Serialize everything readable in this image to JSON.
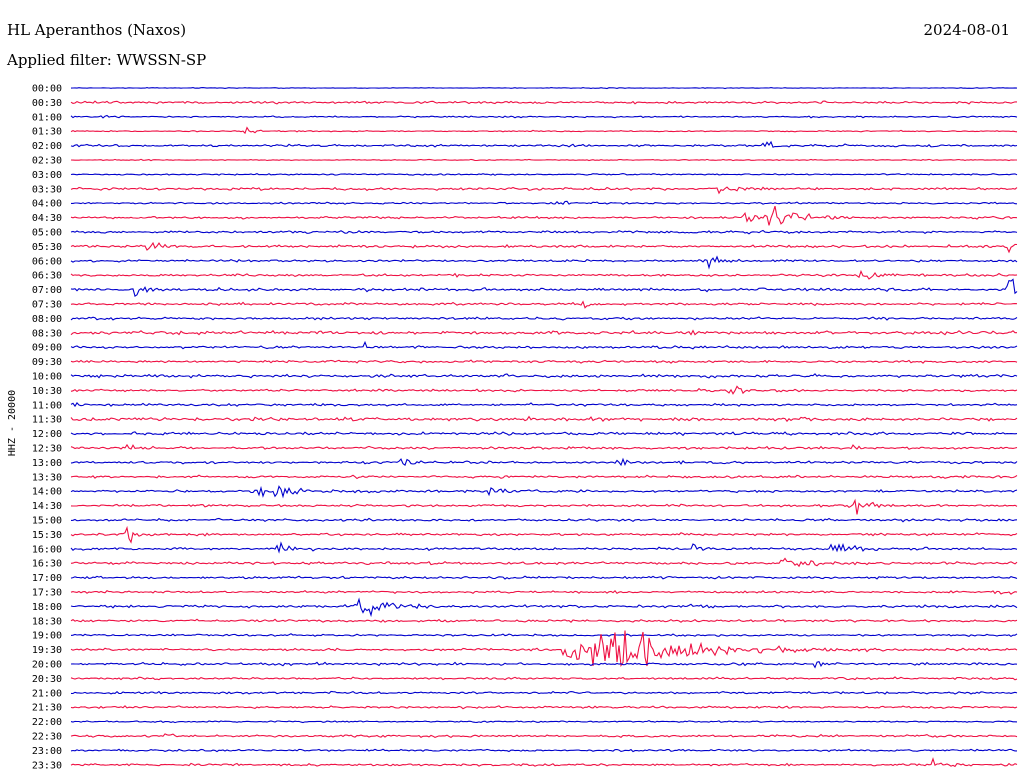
{
  "header": {
    "station": "HL Aperanthos (Naxos)",
    "date": "2024-08-01",
    "filter": "Applied filter: WWSSN-SP"
  },
  "chart_data": {
    "type": "line",
    "title": "HL Aperanthos (Naxos)",
    "ylabel": "HHZ - 20000",
    "xlabel": "",
    "grid": false,
    "legend": "none",
    "colors": [
      "#0000cc",
      "#ee1144"
    ],
    "trace_labels": [
      "00:00",
      "00:30",
      "01:00",
      "01:30",
      "02:00",
      "02:30",
      "03:00",
      "03:30",
      "04:00",
      "04:30",
      "05:00",
      "05:30",
      "06:00",
      "06:30",
      "07:00",
      "07:30",
      "08:00",
      "08:30",
      "09:00",
      "09:30",
      "10:00",
      "10:30",
      "11:00",
      "11:30",
      "12:00",
      "12:30",
      "13:00",
      "13:30",
      "14:00",
      "14:30",
      "15:00",
      "15:30",
      "16:00",
      "16:30",
      "17:00",
      "17:30",
      "18:00",
      "18:30",
      "19:00",
      "19:30",
      "20:00",
      "20:30",
      "21:00",
      "21:30",
      "22:00",
      "22:30",
      "23:00",
      "23:30"
    ],
    "trace_noise": [
      0.3,
      1,
      0.6,
      0.5,
      0.9,
      0.4,
      0.6,
      1,
      0.7,
      0.9,
      1,
      1,
      0.9,
      1,
      1.2,
      1,
      1,
      1.4,
      1,
      1,
      1.2,
      1,
      1,
      1.4,
      1.2,
      1,
      1,
      1,
      1,
      1,
      1,
      1,
      1,
      1.1,
      1,
      0.9,
      1.1,
      1,
      0.9,
      1,
      1,
      0.9,
      0.9,
      0.9,
      0.6,
      1,
      0.8,
      0.9
    ],
    "minutes_per_trace": 30,
    "events": [
      {
        "trace": 2,
        "minute": 1,
        "amplitude": 3,
        "duration": 0.3
      },
      {
        "trace": 3,
        "minute": 5.5,
        "amplitude": 5,
        "duration": 0.2
      },
      {
        "trace": 4,
        "minute": 21.8,
        "amplitude": 3,
        "duration": 1
      },
      {
        "trace": 7,
        "minute": 20.4,
        "amplitude": 4,
        "duration": 0.8
      },
      {
        "trace": 8,
        "minute": 15.3,
        "amplitude": 3,
        "duration": 0.8
      },
      {
        "trace": 9,
        "minute": 22,
        "amplitude": 12,
        "duration": 1
      },
      {
        "trace": 9,
        "minute": 21.3,
        "amplitude": 7,
        "duration": 0.3
      },
      {
        "trace": 11,
        "minute": 2.4,
        "amplitude": 6,
        "duration": 0.4
      },
      {
        "trace": 11,
        "minute": 29.7,
        "amplitude": 5,
        "duration": 0.5
      },
      {
        "trace": 12,
        "minute": 20.2,
        "amplitude": 7,
        "duration": 0.5
      },
      {
        "trace": 13,
        "minute": 24.9,
        "amplitude": 4,
        "duration": 0.8
      },
      {
        "trace": 14,
        "minute": 2,
        "amplitude": 6,
        "duration": 0.4
      },
      {
        "trace": 14,
        "minute": 29.7,
        "amplitude": 12,
        "duration": 0.6
      },
      {
        "trace": 15,
        "minute": 16.2,
        "amplitude": 5,
        "duration": 0.3
      },
      {
        "trace": 18,
        "minute": 9.3,
        "amplitude": 4,
        "duration": 0.3
      },
      {
        "trace": 18,
        "minute": 19.6,
        "amplitude": 4,
        "duration": 0.3
      },
      {
        "trace": 21,
        "minute": 20.8,
        "amplitude": 8,
        "duration": 0.3
      },
      {
        "trace": 21,
        "minute": 19.7,
        "amplitude": 5,
        "duration": 0.2
      },
      {
        "trace": 25,
        "minute": 1.8,
        "amplitude": 5,
        "duration": 0.3
      },
      {
        "trace": 25,
        "minute": 24.7,
        "amplitude": 5,
        "duration": 0.2
      },
      {
        "trace": 26,
        "minute": 10.4,
        "amplitude": 10,
        "duration": 0.3
      },
      {
        "trace": 26,
        "minute": 17.2,
        "amplitude": 8,
        "duration": 0.3
      },
      {
        "trace": 28,
        "minute": 5.9,
        "amplitude": 8,
        "duration": 1.5
      },
      {
        "trace": 28,
        "minute": 13.2,
        "amplitude": 6,
        "duration": 0.4
      },
      {
        "trace": 29,
        "minute": 24.8,
        "amplitude": 9,
        "duration": 0.5
      },
      {
        "trace": 31,
        "minute": 1.7,
        "amplitude": 10,
        "duration": 0.3
      },
      {
        "trace": 32,
        "minute": 6.5,
        "amplitude": 5,
        "duration": 0.8
      },
      {
        "trace": 32,
        "minute": 24,
        "amplitude": 5,
        "duration": 1.2
      },
      {
        "trace": 32,
        "minute": 19.7,
        "amplitude": 4,
        "duration": 0.2
      },
      {
        "trace": 33,
        "minute": 22.5,
        "amplitude": 7,
        "duration": 0.8
      },
      {
        "trace": 35,
        "minute": 29.2,
        "amplitude": 3,
        "duration": 0.5
      },
      {
        "trace": 36,
        "minute": 9,
        "amplitude": 10,
        "duration": 1.3
      },
      {
        "trace": 36,
        "minute": 19.6,
        "amplitude": 4,
        "duration": 0.3
      },
      {
        "trace": 36,
        "minute": 30,
        "amplitude": 6,
        "duration": 0.2
      },
      {
        "trace": 39,
        "minute": 15.6,
        "amplitude": 22,
        "duration": 4
      },
      {
        "trace": 39,
        "minute": 17.3,
        "amplitude": 12,
        "duration": 2
      },
      {
        "trace": 40,
        "minute": 23.5,
        "amplitude": 4,
        "duration": 0.3
      },
      {
        "trace": 45,
        "minute": 2.9,
        "amplitude": 3,
        "duration": 0.3
      },
      {
        "trace": 47,
        "minute": 27.3,
        "amplitude": 4,
        "duration": 0.4
      }
    ]
  }
}
